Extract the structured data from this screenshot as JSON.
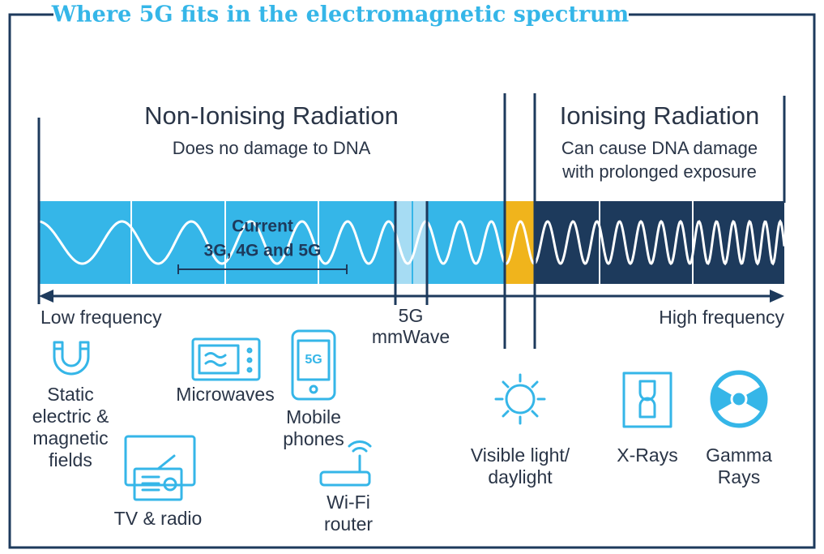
{
  "title": "Where 5G fits in the electromagnetic spectrum",
  "non_ionising": {
    "heading": "Non-Ionising Radiation",
    "subtitle": [
      "Does no damage to DNA"
    ]
  },
  "ionising": {
    "heading": "Ionising Radiation",
    "subtitle": [
      "Can cause DNA damage",
      "with prolonged exposure"
    ]
  },
  "current_band": [
    "Current",
    "3G, 4G and 5G"
  ],
  "mmwave": [
    "5G",
    "mmWave"
  ],
  "low_frequency": "Low frequency",
  "high_frequency": "High frequency",
  "phone_badge": "5G",
  "items": [
    {
      "label": [
        "Static",
        "electric &",
        "magnetic",
        "fields"
      ]
    },
    {
      "label": [
        "Microwaves"
      ]
    },
    {
      "label": [
        "Mobile",
        "phones"
      ]
    },
    {
      "label": [
        "TV & radio"
      ]
    },
    {
      "label": [
        "Wi-Fi",
        "router"
      ]
    },
    {
      "label": [
        "Visible light/",
        "daylight"
      ]
    },
    {
      "label": [
        "X-Rays"
      ]
    },
    {
      "label": [
        "Gamma",
        "Rays"
      ]
    }
  ]
}
